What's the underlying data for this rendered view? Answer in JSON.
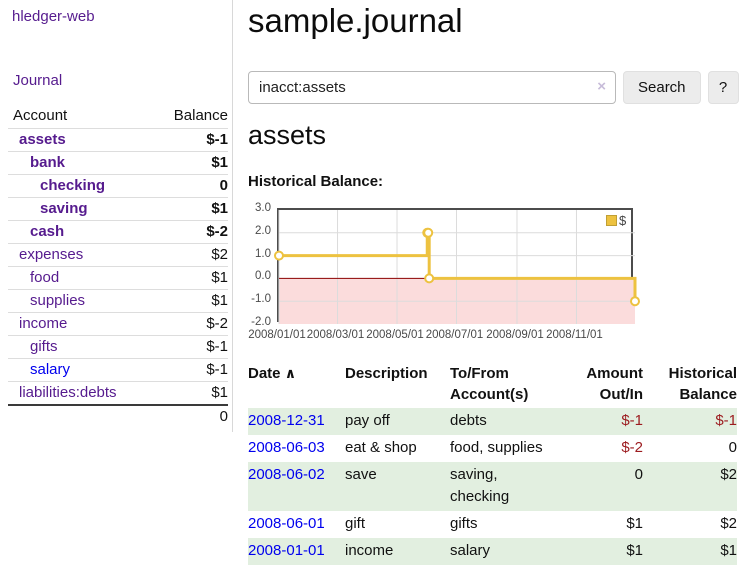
{
  "sidebar": {
    "title": "hledger-web",
    "nav_journal": "Journal",
    "accounts": {
      "col_account": "Account",
      "col_balance": "Balance",
      "rows": [
        {
          "name": "assets",
          "balance": "$-1"
        },
        {
          "name": "bank",
          "balance": "$1"
        },
        {
          "name": "checking",
          "balance": "0"
        },
        {
          "name": "saving",
          "balance": "$1"
        },
        {
          "name": "cash",
          "balance": "$-2"
        },
        {
          "name": "expenses",
          "balance": "$2"
        },
        {
          "name": "food",
          "balance": "$1"
        },
        {
          "name": "supplies",
          "balance": "$1"
        },
        {
          "name": "income",
          "balance": "$-2"
        },
        {
          "name": "gifts",
          "balance": "$-1"
        },
        {
          "name": "salary",
          "balance": "$-1"
        },
        {
          "name": "liabilities:debts",
          "balance": "$1"
        }
      ],
      "total": "0"
    }
  },
  "main": {
    "title": "sample.journal",
    "search": {
      "value": "inacct:assets",
      "clear_icon": "×",
      "search_button": "Search",
      "help_button": "?"
    },
    "account_heading": "assets",
    "chart_title": "Historical Balance:"
  },
  "chart_data": {
    "type": "line",
    "title": "Historical Balance",
    "xlim": [
      "2008-01-01",
      "2008-12-31"
    ],
    "ylim": [
      -2,
      3
    ],
    "x_ticks": [
      "2008/01/01",
      "2008/03/01",
      "2008/05/01",
      "2008/07/01",
      "2008/09/01",
      "2008/11/01"
    ],
    "y_ticks": [
      3.0,
      2.0,
      1.0,
      0.0,
      -1.0,
      -2.0
    ],
    "grid": true,
    "legend_position": "top-right",
    "series": [
      {
        "name": "$",
        "color": "#edc240",
        "step": true,
        "points": [
          [
            "2008-01-01",
            1
          ],
          [
            "2008-06-01",
            2
          ],
          [
            "2008-06-02",
            2
          ],
          [
            "2008-06-03",
            0
          ],
          [
            "2008-12-31",
            -1
          ]
        ]
      }
    ],
    "negative_region_fill": "#fbdcdc",
    "zero_line_color": "#8b0000",
    "grid_color": "#dcdcdc"
  },
  "register": {
    "headers": {
      "date": "Date",
      "description": "Description",
      "accounts": "To/From Account(s)",
      "amount": "Amount Out/In",
      "balance": "Historical Balance"
    },
    "sort_icon": "∧",
    "rows": [
      {
        "date": "2008-12-31",
        "description": "pay off",
        "accounts": "debts",
        "amount": "$-1",
        "balance": "$-1"
      },
      {
        "date": "2008-06-03",
        "description": "eat & shop",
        "accounts": "food, supplies",
        "amount": "$-2",
        "balance": "0"
      },
      {
        "date": "2008-06-02",
        "description": "save",
        "accounts": "saving, checking",
        "amount": "0",
        "balance": "$2"
      },
      {
        "date": "2008-06-01",
        "description": "gift",
        "accounts": "gifts",
        "amount": "$1",
        "balance": "$2"
      },
      {
        "date": "2008-01-01",
        "description": "income",
        "accounts": "salary",
        "amount": "$1",
        "balance": "$1"
      }
    ]
  },
  "colors": {
    "link_purple": "#561b8e",
    "link_blue": "#0000ee",
    "negative_red": "#9c1b1f",
    "negative_rose": "#c4757e",
    "row_green": "#e2efe0",
    "series_yellow": "#edc240"
  }
}
